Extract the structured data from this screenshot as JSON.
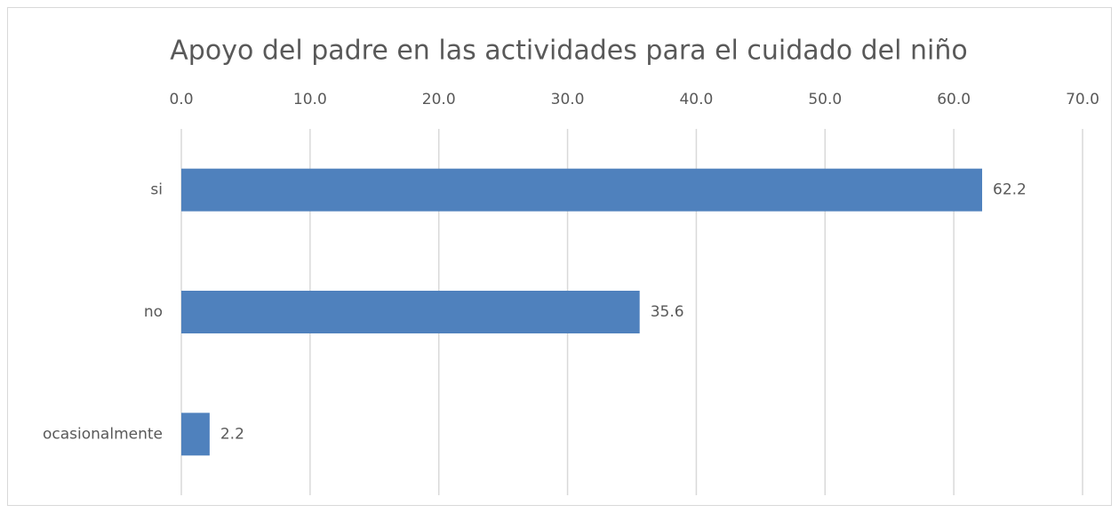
{
  "chart_data": {
    "type": "bar",
    "orientation": "horizontal",
    "title": "Apoyo del padre en las actividades para el cuidado del niño",
    "categories": [
      "si",
      "no",
      "ocasionalmente"
    ],
    "values": [
      62.2,
      35.6,
      2.2
    ],
    "color": "#4f81bd",
    "xlim": [
      0,
      70
    ],
    "xticks": [
      {
        "value": 0,
        "label": "0.0"
      },
      {
        "value": 10,
        "label": "10.0"
      },
      {
        "value": 20,
        "label": "20.0"
      },
      {
        "value": 30,
        "label": "30.0"
      },
      {
        "value": 40,
        "label": "40.0"
      },
      {
        "value": 50,
        "label": "50.0"
      },
      {
        "value": 60,
        "label": "60.0"
      },
      {
        "value": 70,
        "label": "70.0"
      }
    ],
    "grid": true
  }
}
